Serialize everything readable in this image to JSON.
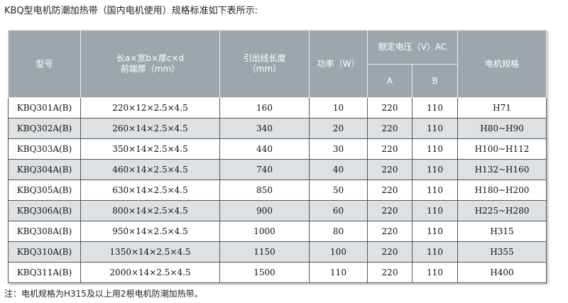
{
  "title": "KBQ型电机防潮加热带（国内电机使用）规格标准如下表所示:",
  "headers": {
    "model": "型号",
    "dims_line1": "长a×宽b×厚c×d",
    "dims_line2": "前端厚（mm）",
    "lead_line1": "引出线长度",
    "lead_line2": "（mm）",
    "power": "功率（W）",
    "voltage": "额定电压（V）AC",
    "voltage_a": "A",
    "voltage_b": "B",
    "motor": "电机规格"
  },
  "rows": [
    [
      "KBQ301A(B)",
      "220×12×2.5×4.5",
      "160",
      "10",
      "220",
      "110",
      "H71"
    ],
    [
      "KBQ302A(B)",
      "260×14×2.5×4.5",
      "340",
      "20",
      "220",
      "110",
      "H80~H90"
    ],
    [
      "KBQ303A(B)",
      "350×14×2.5×4.5",
      "440",
      "30",
      "220",
      "110",
      "H100~H112"
    ],
    [
      "KBQ304A(B)",
      "460×14×2.5×4.5",
      "740",
      "40",
      "220",
      "110",
      "H132~H160"
    ],
    [
      "KBQ305A(B)",
      "630×14×2.5×4.5",
      "850",
      "50",
      "220",
      "110",
      "H180~H200"
    ],
    [
      "KBQ306A(B)",
      "800×14×2.5×4.5",
      "900",
      "60",
      "220",
      "110",
      "H225~H280"
    ],
    [
      "KBQ308A(B)",
      "950×14×2.5×4.5",
      "1000",
      "80",
      "220",
      "110",
      "H315"
    ],
    [
      "KBQ310A(B)",
      "1350×14×2.5×4.5",
      "1150",
      "100",
      "220",
      "110",
      "H355"
    ],
    [
      "KBQ311A(B)",
      "2000×14×2.5×4.5",
      "1500",
      "110",
      "220",
      "110",
      "H400"
    ]
  ],
  "note": "注：电机规格为H315及以上用2根电机防潮加热带。"
}
